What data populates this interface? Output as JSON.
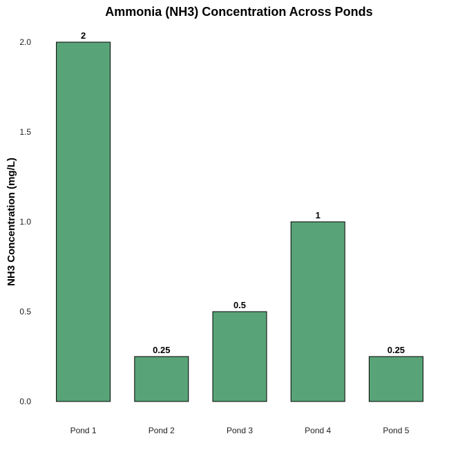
{
  "chart_data": {
    "type": "bar",
    "title": "Ammonia (NH3) Concentration Across Ponds",
    "xlabel": "",
    "ylabel": "NH3 Concentration (mg/L)",
    "categories": [
      "Pond 1",
      "Pond 2",
      "Pond 3",
      "Pond 4",
      "Pond 5"
    ],
    "values": [
      2,
      0.25,
      0.5,
      1,
      0.25
    ],
    "data_labels": [
      "2",
      "0.25",
      "0.5",
      "1",
      "0.25"
    ],
    "ylim": [
      0,
      2
    ],
    "yticks": [
      "0.0",
      "0.5",
      "1.0",
      "1.5",
      "2.0"
    ],
    "ytick_values": [
      0,
      0.5,
      1,
      1.5,
      2
    ],
    "grid": false,
    "bar_color": "#58a478",
    "bar_edge_color": "#000000"
  }
}
